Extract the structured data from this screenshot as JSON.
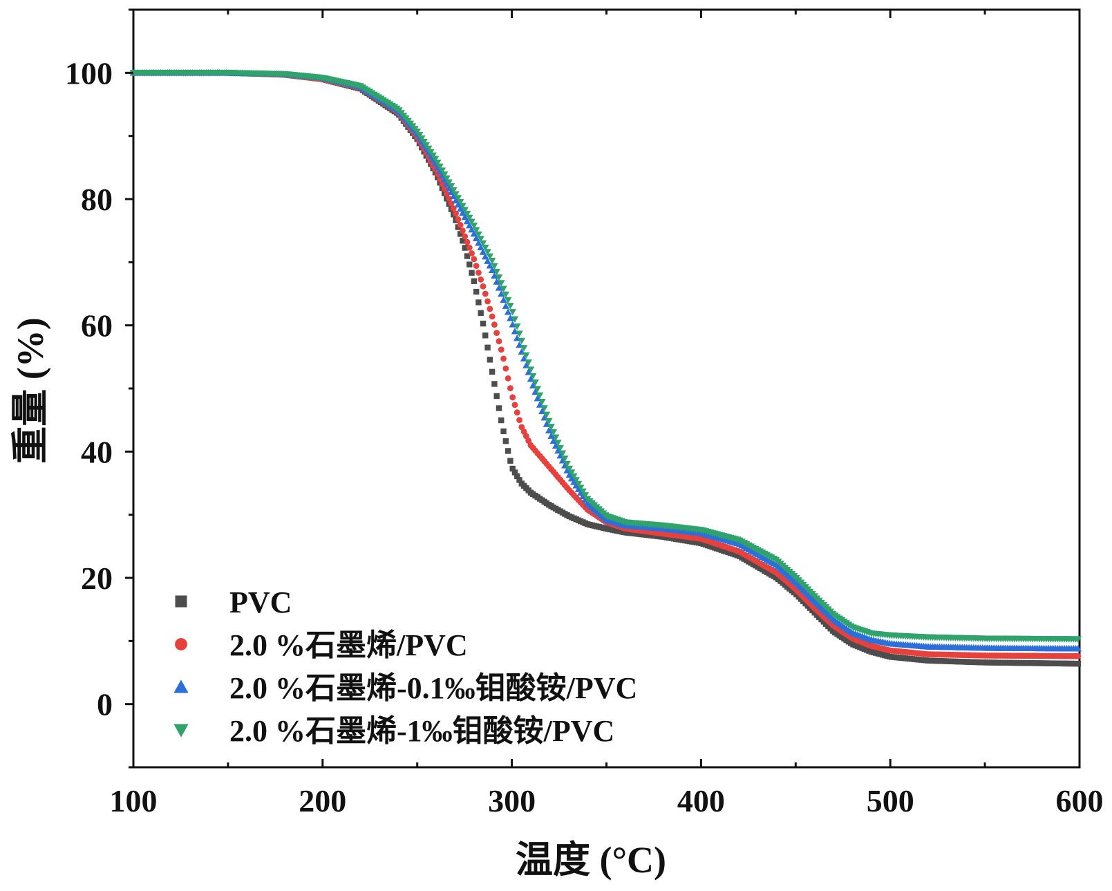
{
  "chart_data": {
    "type": "scatter",
    "title": "",
    "xlabel": "温度 (°C)",
    "ylabel": "重量 (%)",
    "xlim": [
      100,
      600
    ],
    "ylim": [
      -10,
      110
    ],
    "xticks": [
      100,
      200,
      300,
      400,
      500,
      600
    ],
    "yticks": [
      0,
      20,
      40,
      60,
      80,
      100
    ],
    "x_tick_labels": [
      "100",
      "200",
      "300",
      "400",
      "500",
      "600"
    ],
    "y_tick_labels": [
      "0",
      "20",
      "40",
      "60",
      "80",
      "100"
    ],
    "grid": false,
    "legend_position": "bottom-left",
    "series": [
      {
        "name": "PVC",
        "marker": "square",
        "color": "#4d4d4d",
        "x": [
          100,
          150,
          180,
          200,
          220,
          240,
          250,
          260,
          270,
          275,
          280,
          285,
          290,
          295,
          300,
          305,
          310,
          320,
          330,
          340,
          350,
          360,
          380,
          400,
          420,
          440,
          450,
          460,
          470,
          480,
          490,
          500,
          520,
          550,
          600
        ],
        "y": [
          100,
          100,
          99.7,
          99,
          97.5,
          93.5,
          89.5,
          84,
          77,
          72.5,
          67,
          60,
          52,
          44,
          37.5,
          35,
          33.5,
          31.5,
          29.8,
          28.5,
          27.8,
          27.2,
          26.5,
          25.5,
          23.5,
          20,
          17.5,
          14.5,
          11.5,
          9.5,
          8.3,
          7.5,
          6.9,
          6.6,
          6.4
        ]
      },
      {
        "name": "2.0 %石墨烯/PVC",
        "marker": "circle",
        "color": "#e8403c",
        "x": [
          100,
          150,
          180,
          200,
          220,
          240,
          250,
          260,
          270,
          280,
          285,
          290,
          295,
          300,
          305,
          310,
          320,
          330,
          340,
          350,
          360,
          380,
          400,
          420,
          440,
          450,
          460,
          470,
          480,
          490,
          500,
          520,
          550,
          600
        ],
        "y": [
          100,
          100,
          99.7,
          99,
          97.6,
          93.7,
          89.8,
          84.5,
          78,
          70.5,
          66,
          61,
          55.5,
          49,
          44,
          41,
          37.5,
          34,
          30.8,
          28.8,
          27.8,
          27,
          26.2,
          24.2,
          20.8,
          18.2,
          15.2,
          12.4,
          10.4,
          9.2,
          8.5,
          7.9,
          7.7,
          7.6
        ]
      },
      {
        "name": "2.0 %石墨烯-0.1‰钼酸铵/PVC",
        "marker": "triangle-up",
        "color": "#2a6fdb",
        "x": [
          100,
          150,
          180,
          200,
          220,
          240,
          250,
          260,
          270,
          280,
          290,
          300,
          310,
          320,
          330,
          340,
          350,
          360,
          380,
          400,
          420,
          440,
          450,
          460,
          470,
          480,
          490,
          500,
          520,
          550,
          600
        ],
        "y": [
          100,
          100,
          99.8,
          99.2,
          97.8,
          94,
          90.3,
          85.5,
          80,
          74.5,
          68.5,
          60.5,
          51.5,
          43,
          36.5,
          31.8,
          29.2,
          28.3,
          27.8,
          27.1,
          25.4,
          22,
          19.3,
          16.3,
          13.4,
          11.3,
          10.2,
          9.6,
          9.1,
          8.9,
          8.8
        ]
      },
      {
        "name": "2.0 %石墨烯-1‰钼酸铵/PVC",
        "marker": "triangle-down",
        "color": "#2fa36b",
        "x": [
          100,
          150,
          180,
          200,
          220,
          240,
          250,
          260,
          270,
          280,
          290,
          300,
          310,
          320,
          330,
          340,
          350,
          360,
          380,
          400,
          420,
          440,
          450,
          460,
          470,
          480,
          490,
          500,
          520,
          550,
          600
        ],
        "y": [
          100,
          100,
          99.8,
          99.2,
          97.9,
          94.2,
          90.7,
          86.2,
          81,
          75.8,
          70,
          62.5,
          53,
          44.5,
          37.5,
          32.5,
          29.8,
          28.8,
          28.3,
          27.6,
          26,
          22.8,
          20.1,
          17.1,
          14.2,
          12.2,
          11.2,
          10.9,
          10.6,
          10.4,
          10.3
        ]
      }
    ]
  }
}
